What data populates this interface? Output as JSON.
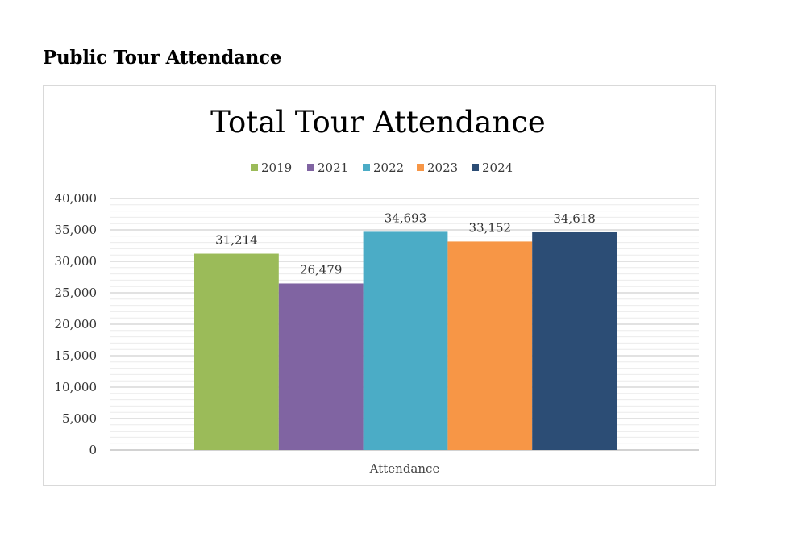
{
  "page": {
    "heading": "Public Tour Attendance"
  },
  "chart_data": {
    "type": "bar",
    "title": "Total Tour Attendance",
    "categories": [
      "Attendance"
    ],
    "series": [
      {
        "name": "2019",
        "color": "#9bbb59",
        "values": [
          31214
        ],
        "label": "31,214"
      },
      {
        "name": "2021",
        "color": "#8064a2",
        "values": [
          26479
        ],
        "label": "26,479"
      },
      {
        "name": "2022",
        "color": "#4bacc6",
        "values": [
          34693
        ],
        "label": "34,693"
      },
      {
        "name": "2023",
        "color": "#f79646",
        "values": [
          33152
        ],
        "label": "33,152"
      },
      {
        "name": "2024",
        "color": "#2c4d75",
        "values": [
          34618
        ],
        "label": "34,618"
      }
    ],
    "xlabel": "",
    "ylabel": "",
    "ylim": [
      0,
      40000
    ],
    "y_ticks": [
      "0",
      "5,000",
      "10,000",
      "15,000",
      "20,000",
      "25,000",
      "30,000",
      "35,000",
      "40,000"
    ],
    "y_tick_values": [
      0,
      5000,
      10000,
      15000,
      20000,
      25000,
      30000,
      35000,
      40000
    ],
    "minor_grid_step": 1000,
    "grid": true,
    "legend_position": "top"
  }
}
